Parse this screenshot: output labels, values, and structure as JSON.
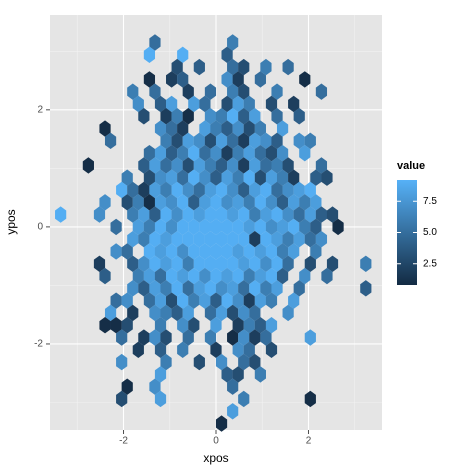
{
  "chart_data": {
    "type": "hexbin",
    "x_label": "xpos",
    "y_label": "ypos",
    "xlim": [
      -3.59,
      3.59
    ],
    "ylim": [
      -3.47,
      3.62
    ],
    "xticks": [
      -2,
      0,
      2
    ],
    "yticks": [
      -2,
      0,
      2
    ],
    "xminor": [
      -3,
      -1,
      1,
      3
    ],
    "yminor": [
      -3,
      -1,
      1,
      3
    ],
    "grid": true,
    "legend_title": "value",
    "legend_position": "right",
    "clim": [
      0.8,
      9.2
    ],
    "cticks": [
      2.5,
      {
        "value": 5,
        "label": "5.0"
      },
      7.5
    ],
    "color_low": "#132B43",
    "color_high": "#56B1F7",
    "rows": [
      {
        "y": 3.15,
        "x": [
          -1.32,
          0.36
        ],
        "values": [
          5,
          6
        ]
      },
      {
        "y": 2.94,
        "x": [
          -1.44,
          -0.72,
          0.24
        ],
        "values": [
          9,
          9,
          4
        ]
      },
      {
        "y": 2.73,
        "x": [
          -0.84,
          -0.36,
          0.36,
          0.6,
          1.08,
          1.56
        ],
        "values": [
          3,
          4,
          5,
          3,
          6,
          5
        ]
      },
      {
        "y": 2.52,
        "x": [
          -1.44,
          -0.96,
          -0.72,
          0.24,
          0.48,
          0.96,
          1.92
        ],
        "values": [
          1,
          2,
          4,
          7,
          2,
          5,
          1
        ]
      },
      {
        "y": 2.31,
        "x": [
          -1.8,
          -1.32,
          -0.6,
          -0.12,
          0.36,
          0.6,
          1.32,
          2.28
        ],
        "values": [
          6,
          5,
          2,
          5,
          6,
          3,
          6,
          5
        ]
      },
      {
        "y": 2.1,
        "x": [
          -1.68,
          -1.2,
          -0.96,
          -0.48,
          -0.24,
          0.24,
          0.48,
          0.72,
          1.2,
          1.68
        ],
        "values": [
          7,
          4,
          8,
          8,
          5,
          3,
          8,
          6,
          3,
          2
        ]
      },
      {
        "y": 1.89,
        "x": [
          -1.56,
          -1.08,
          -0.84,
          -0.6,
          -0.12,
          0.12,
          0.36,
          0.6,
          0.84,
          1.32,
          1.8
        ],
        "values": [
          3,
          2,
          6,
          1,
          7,
          6,
          9,
          4,
          8,
          5,
          4
        ]
      },
      {
        "y": 1.68,
        "x": [
          -2.4,
          -1.2,
          -0.96,
          -0.72,
          -0.24,
          0,
          0.24,
          0.48,
          0.72,
          0.96,
          1.44
        ],
        "values": [
          1,
          7,
          5,
          2,
          8,
          6,
          4,
          7,
          3,
          6,
          8
        ]
      },
      {
        "y": 1.47,
        "x": [
          -2.28,
          -1.08,
          -0.84,
          -0.6,
          -0.36,
          -0.12,
          0.12,
          0.36,
          0.6,
          0.84,
          1.08,
          1.32,
          1.8,
          2.04
        ],
        "values": [
          5,
          6,
          3,
          8,
          7,
          3,
          8,
          5,
          2,
          8,
          7,
          4,
          7,
          6
        ]
      },
      {
        "y": 1.26,
        "x": [
          -1.44,
          -1.2,
          -0.96,
          -0.72,
          -0.48,
          -0.24,
          0,
          0.24,
          0.48,
          0.72,
          0.96,
          1.2,
          1.44,
          1.92
        ],
        "values": [
          5,
          8,
          4,
          6,
          9,
          5,
          7,
          2,
          6,
          8,
          5,
          3,
          7,
          8
        ]
      },
      {
        "y": 1.05,
        "x": [
          -2.76,
          -1.56,
          -1.32,
          -1.08,
          -0.84,
          -0.6,
          -0.36,
          -0.12,
          0.12,
          0.36,
          0.6,
          0.84,
          1.08,
          1.32,
          1.56,
          2.28
        ],
        "values": [
          1,
          4,
          8,
          5,
          7,
          3,
          8,
          6,
          4,
          7,
          2,
          8,
          5,
          6,
          3,
          5
        ]
      },
      {
        "y": 0.84,
        "x": [
          -1.92,
          -1.44,
          -1.2,
          -0.96,
          -0.72,
          -0.48,
          -0.24,
          0,
          0.24,
          0.48,
          0.72,
          0.96,
          1.2,
          1.44,
          1.68,
          2.16,
          2.4
        ],
        "values": [
          6,
          3,
          7,
          8,
          5,
          9,
          7,
          4,
          8,
          6,
          9,
          3,
          8,
          6,
          2,
          4,
          3
        ]
      },
      {
        "y": 0.63,
        "x": [
          -2.04,
          -1.8,
          -1.56,
          -1.32,
          -1.08,
          -0.84,
          -0.6,
          -0.36,
          -0.12,
          0.12,
          0.36,
          0.6,
          0.84,
          1.08,
          1.32,
          1.56,
          1.8,
          2.04
        ],
        "values": [
          9,
          5,
          2,
          8,
          6,
          9,
          7,
          5,
          8,
          9,
          7,
          4,
          8,
          9,
          5,
          7,
          8,
          9
        ]
      },
      {
        "y": 0.42,
        "x": [
          -2.4,
          -1.92,
          -1.68,
          -1.44,
          -1.2,
          -0.96,
          -0.72,
          -0.48,
          -0.24,
          0,
          0.24,
          0.48,
          0.72,
          0.96,
          1.2,
          1.44,
          1.68,
          1.92,
          2.16
        ],
        "values": [
          7,
          3,
          6,
          1,
          8,
          7,
          9,
          4,
          8,
          9,
          7,
          8,
          6,
          9,
          7,
          4,
          8,
          6,
          8
        ]
      },
      {
        "y": 0.21,
        "x": [
          -3.36,
          -2.52,
          -1.8,
          -1.56,
          -1.32,
          -1.08,
          -0.84,
          -0.6,
          -0.36,
          -0.12,
          0.12,
          0.36,
          0.6,
          0.84,
          1.08,
          1.32,
          1.56,
          1.8,
          2.04,
          2.28,
          2.52
        ],
        "values": [
          9,
          7,
          6,
          8,
          4,
          9,
          7,
          9,
          8,
          9,
          9,
          8,
          9,
          6,
          8,
          9,
          7,
          5,
          8,
          4,
          3
        ]
      },
      {
        "y": 0,
        "x": [
          -2.16,
          -1.68,
          -1.44,
          -1.2,
          -0.96,
          -0.72,
          -0.48,
          -0.24,
          0,
          0.24,
          0.48,
          0.72,
          0.96,
          1.2,
          1.44,
          1.68,
          1.92,
          2.16,
          2.64
        ],
        "values": [
          5,
          8,
          6,
          9,
          7,
          9,
          9,
          9,
          9,
          9,
          9,
          8,
          9,
          7,
          8,
          9,
          6,
          4,
          1
        ]
      },
      {
        "y": -0.21,
        "x": [
          -1.8,
          -1.56,
          -1.32,
          -1.08,
          -0.84,
          -0.6,
          -0.36,
          -0.12,
          0.12,
          0.36,
          0.6,
          0.84,
          1.08,
          1.32,
          1.56,
          1.8,
          2.04,
          2.28
        ],
        "values": [
          8,
          6,
          9,
          8,
          9,
          9,
          9,
          9,
          9,
          9,
          9,
          2,
          9,
          8,
          6,
          8,
          5,
          7
        ]
      },
      {
        "y": -0.42,
        "x": [
          -2.16,
          -1.92,
          -1.44,
          -1.2,
          -0.96,
          -0.72,
          -0.48,
          -0.24,
          0,
          0.24,
          0.48,
          0.72,
          0.96,
          1.2,
          1.44,
          1.68,
          2.16
        ],
        "values": [
          7,
          5,
          9,
          8,
          9,
          7,
          9,
          9,
          9,
          9,
          8,
          9,
          8,
          9,
          6,
          8,
          6
        ]
      },
      {
        "y": -0.63,
        "x": [
          -2.52,
          -1.8,
          -1.56,
          -1.32,
          -1.08,
          -0.84,
          -0.6,
          -0.36,
          -0.12,
          0.12,
          0.36,
          0.6,
          0.84,
          1.08,
          1.32,
          1.56,
          2.04,
          2.52,
          3.24
        ],
        "values": [
          2,
          4,
          7,
          9,
          8,
          9,
          6,
          9,
          9,
          9,
          9,
          8,
          9,
          7,
          9,
          5,
          3,
          3,
          6
        ]
      },
      {
        "y": -0.84,
        "x": [
          -2.4,
          -1.68,
          -1.44,
          -1.2,
          -0.96,
          -0.72,
          -0.48,
          -0.24,
          0,
          0.24,
          0.48,
          0.72,
          0.96,
          1.2,
          1.44,
          1.92,
          2.4
        ],
        "values": [
          4,
          6,
          8,
          5,
          9,
          8,
          9,
          7,
          9,
          8,
          9,
          6,
          8,
          9,
          4,
          7,
          5
        ]
      },
      {
        "y": -1.05,
        "x": [
          -1.8,
          -1.56,
          -1.32,
          -1.08,
          -0.84,
          -0.6,
          -0.36,
          -0.12,
          0.12,
          0.36,
          0.6,
          0.84,
          1.08,
          1.32,
          1.8,
          3.24
        ],
        "values": [
          7,
          4,
          8,
          6,
          9,
          5,
          8,
          9,
          7,
          8,
          5,
          9,
          6,
          8,
          5,
          4
        ]
      },
      {
        "y": -1.26,
        "x": [
          -2.16,
          -1.92,
          -1.44,
          -1.2,
          -0.96,
          -0.72,
          -0.48,
          -0.24,
          0,
          0.24,
          0.48,
          0.72,
          0.96,
          1.2,
          1.68
        ],
        "values": [
          5,
          7,
          5,
          8,
          3,
          9,
          6,
          8,
          4,
          9,
          7,
          2,
          8,
          6,
          8
        ]
      },
      {
        "y": -1.47,
        "x": [
          -2.28,
          -1.8,
          -1.32,
          -1.08,
          -0.84,
          -0.6,
          -0.12,
          0.12,
          0.36,
          0.6,
          0.84,
          1.56
        ],
        "values": [
          8,
          2,
          7,
          6,
          4,
          8,
          5,
          8,
          3,
          7,
          5,
          7
        ]
      },
      {
        "y": -1.68,
        "x": [
          -2.4,
          -2.16,
          -1.92,
          -1.2,
          -0.72,
          -0.48,
          0,
          0.48,
          0.72,
          0.96,
          1.2
        ],
        "values": [
          1,
          1,
          3,
          6,
          7,
          3,
          8,
          2,
          6,
          4,
          8
        ]
      },
      {
        "y": -1.89,
        "x": [
          -2.04,
          -1.56,
          -1.32,
          -1.08,
          -0.6,
          -0.12,
          0.36,
          0.6,
          0.84,
          1.08,
          2.04
        ],
        "values": [
          5,
          2,
          7,
          3,
          5,
          6,
          1,
          7,
          2,
          5,
          8
        ]
      },
      {
        "y": -2.1,
        "x": [
          -1.68,
          -1.2,
          -0.72,
          0,
          0.48,
          0.72,
          1.2
        ],
        "values": [
          2,
          4,
          6,
          2,
          7,
          5,
          3
        ]
      },
      {
        "y": -2.31,
        "x": [
          -2.04,
          -1.08,
          -0.36,
          0.12,
          0.6,
          0.84
        ],
        "values": [
          7,
          6,
          3,
          7,
          5,
          3
        ]
      },
      {
        "y": -2.52,
        "x": [
          -1.2,
          0.24,
          0.48,
          0.96
        ],
        "values": [
          8,
          4,
          3,
          6
        ]
      },
      {
        "y": -2.73,
        "x": [
          -1.92,
          -1.32,
          0.36
        ],
        "values": [
          1,
          7,
          5
        ]
      },
      {
        "y": -2.94,
        "x": [
          -2.04,
          -1.2,
          0.6,
          2.04
        ],
        "values": [
          3,
          8,
          6,
          1
        ]
      },
      {
        "y": -3.15,
        "x": [
          0.36
        ],
        "values": [
          8
        ]
      },
      {
        "y": -3.36,
        "x": [
          0.12
        ],
        "values": [
          1
        ]
      }
    ]
  }
}
